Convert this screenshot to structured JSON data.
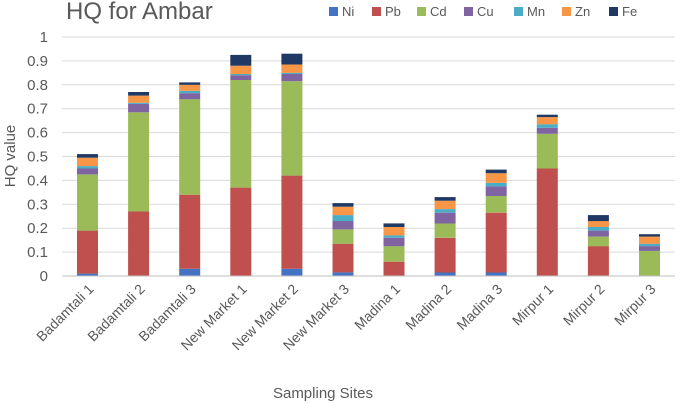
{
  "chart_data": {
    "type": "bar",
    "stacked": true,
    "title": "HQ for Ambar",
    "xlabel": "Sampling Sites",
    "ylabel": "HQ  value",
    "ylim": [
      0,
      1
    ],
    "yticks": [
      "0",
      "0.1",
      "0.2",
      "0.3",
      "0.4",
      "0.5",
      "0.6",
      "0.7",
      "0.8",
      "0.9",
      "1"
    ],
    "grid": true,
    "legend_position": "top",
    "categories": [
      "Badamtali 1",
      "Badamtali 2",
      "Badamtali 3",
      "New Market 1",
      "New Market 2",
      "New Market 3",
      "Madina 1",
      "Madina 2",
      "Madina 3",
      "Mirpur 1",
      "Mirpur 2",
      "Mirpur 3"
    ],
    "series": [
      {
        "name": "Ni",
        "color": "#4472C4",
        "values": [
          0.01,
          0.0,
          0.03,
          0.0,
          0.03,
          0.015,
          0.0,
          0.015,
          0.015,
          0.0,
          0.0,
          0.0
        ]
      },
      {
        "name": "Pb",
        "color": "#C0504D",
        "values": [
          0.18,
          0.27,
          0.31,
          0.37,
          0.39,
          0.12,
          0.06,
          0.145,
          0.25,
          0.45,
          0.125,
          0.0
        ]
      },
      {
        "name": "Cd",
        "color": "#9BBB59",
        "values": [
          0.235,
          0.415,
          0.4,
          0.45,
          0.395,
          0.06,
          0.065,
          0.06,
          0.07,
          0.145,
          0.04,
          0.105
        ]
      },
      {
        "name": "Cu",
        "color": "#8064A2",
        "values": [
          0.025,
          0.035,
          0.025,
          0.02,
          0.03,
          0.035,
          0.035,
          0.045,
          0.04,
          0.025,
          0.025,
          0.02
        ]
      },
      {
        "name": "Mn",
        "color": "#4BACC6",
        "values": [
          0.01,
          0.005,
          0.01,
          0.005,
          0.005,
          0.025,
          0.01,
          0.015,
          0.015,
          0.015,
          0.015,
          0.01
        ]
      },
      {
        "name": "Zn",
        "color": "#F79646",
        "values": [
          0.035,
          0.03,
          0.025,
          0.035,
          0.035,
          0.035,
          0.035,
          0.035,
          0.04,
          0.03,
          0.025,
          0.03
        ]
      },
      {
        "name": "Fe",
        "color": "#1F3864",
        "values": [
          0.015,
          0.015,
          0.01,
          0.045,
          0.045,
          0.015,
          0.015,
          0.015,
          0.015,
          0.01,
          0.025,
          0.01
        ]
      }
    ]
  }
}
